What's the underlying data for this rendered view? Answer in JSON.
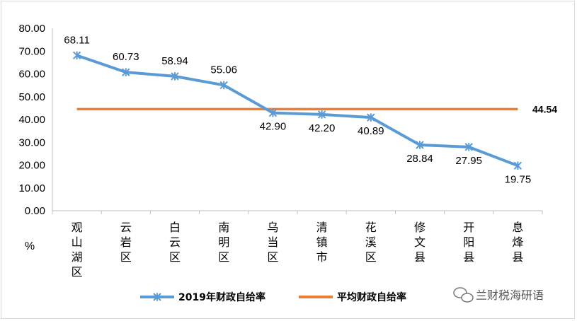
{
  "chart_data": {
    "type": "line",
    "categories": [
      "观山湖区",
      "云岩区",
      "白云区",
      "南明区",
      "乌当区",
      "清镇市",
      "花溪区",
      "修文县",
      "开阳县",
      "息烽县"
    ],
    "series": [
      {
        "name": "2019年财政自给率",
        "values": [
          68.11,
          60.73,
          58.94,
          55.06,
          42.9,
          42.2,
          40.89,
          28.84,
          27.95,
          19.75
        ],
        "labels": [
          "68.11",
          "60.73",
          "58.94",
          "55.06",
          "42.90",
          "42.20",
          "40.89",
          "28.84",
          "27.95",
          "19.75"
        ],
        "color": "#5b9bd5",
        "marker": "asterisk"
      },
      {
        "name": "平均财政自给率",
        "values": [
          44.54,
          44.54,
          44.54,
          44.54,
          44.54,
          44.54,
          44.54,
          44.54,
          44.54,
          44.54
        ],
        "label": "44.54",
        "color": "#ed7d31"
      }
    ],
    "yticks": [
      "0.00",
      "10.00",
      "20.00",
      "30.00",
      "40.00",
      "50.00",
      "60.00",
      "70.00",
      "80.00"
    ],
    "ylim": [
      0,
      80
    ],
    "unit": "%",
    "grid": false,
    "legend_position": "bottom"
  },
  "watermark": {
    "text": "兰财税海研语",
    "icon": "wechat-icon"
  }
}
